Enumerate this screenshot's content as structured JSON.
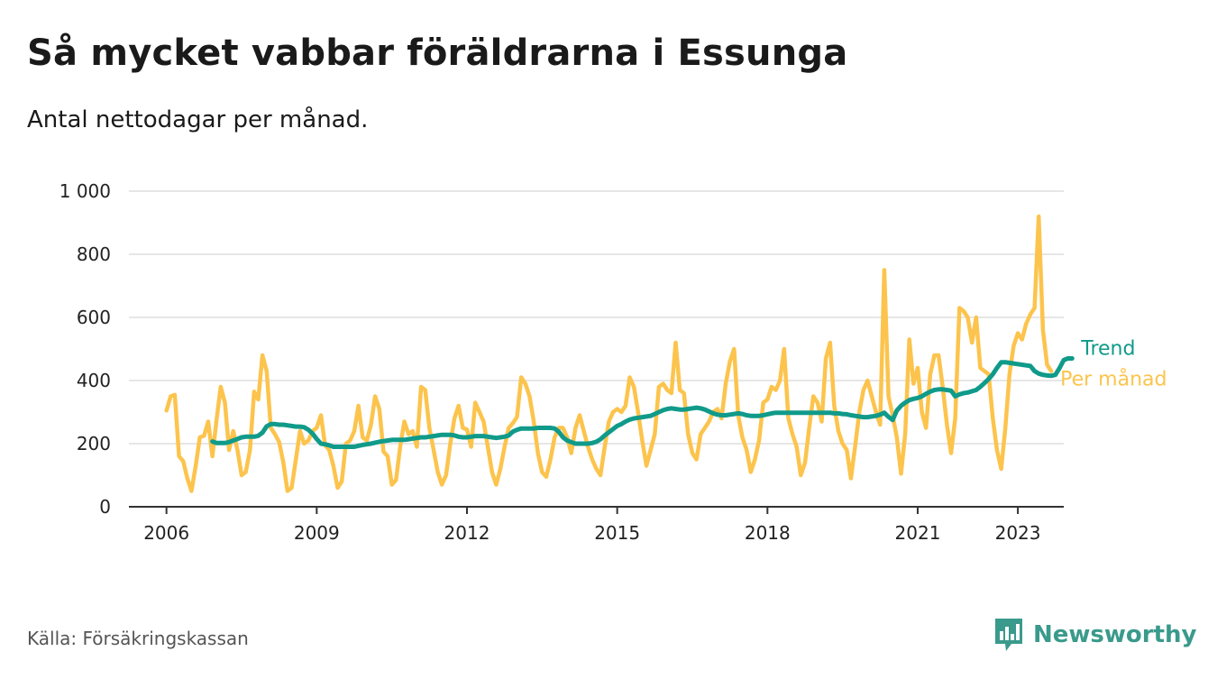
{
  "title": "Så mycket vabbar föräldrarna i Essunga",
  "subtitle": "Antal nettodagar per månad.",
  "source": "Källa: Försäkringskassan",
  "brand": "Newsworthy",
  "colors": {
    "monthly": "#fcc44d",
    "trend": "#109a8a",
    "grid": "#dddddd",
    "axis": "#333333",
    "brand": "#3a9a8c"
  },
  "chart_data": {
    "type": "line",
    "title": "Så mycket vabbar föräldrarna i Essunga",
    "subtitle": "Antal nettodagar per månad.",
    "xlabel": "",
    "ylabel": "",
    "x_ticks": [
      "2006",
      "2009",
      "2012",
      "2015",
      "2018",
      "2021",
      "2023"
    ],
    "y_ticks": [
      "0",
      "200",
      "400",
      "600",
      "800",
      "1 000"
    ],
    "xlim": [
      "2005-04",
      "2023-12"
    ],
    "ylim": [
      0,
      1000
    ],
    "grid": true,
    "legend": "inline-right",
    "series": [
      {
        "name": "Per månad",
        "color": "#fcc44d",
        "x_start": "2006-01",
        "frequency": "monthly",
        "values": [
          305,
          350,
          355,
          160,
          145,
          90,
          50,
          130,
          220,
          225,
          270,
          160,
          275,
          380,
          330,
          180,
          240,
          180,
          100,
          110,
          180,
          365,
          340,
          480,
          430,
          250,
          230,
          205,
          140,
          50,
          60,
          150,
          240,
          200,
          210,
          240,
          250,
          290,
          195,
          180,
          130,
          60,
          80,
          200,
          210,
          240,
          320,
          220,
          210,
          260,
          350,
          310,
          175,
          160,
          70,
          85,
          190,
          270,
          230,
          240,
          190,
          380,
          370,
          250,
          180,
          110,
          70,
          100,
          200,
          280,
          320,
          250,
          245,
          190,
          330,
          300,
          270,
          190,
          110,
          70,
          120,
          190,
          250,
          265,
          285,
          410,
          390,
          350,
          270,
          170,
          110,
          95,
          150,
          220,
          250,
          250,
          220,
          170,
          250,
          290,
          240,
          190,
          150,
          120,
          100,
          190,
          270,
          300,
          310,
          300,
          320,
          410,
          380,
          300,
          210,
          130,
          180,
          230,
          380,
          390,
          370,
          360,
          520,
          370,
          360,
          230,
          170,
          150,
          230,
          250,
          270,
          300,
          310,
          280,
          390,
          460,
          500,
          290,
          220,
          180,
          110,
          150,
          210,
          330,
          340,
          380,
          370,
          400,
          500,
          280,
          230,
          190,
          100,
          140,
          250,
          350,
          330,
          270,
          470,
          520,
          320,
          240,
          200,
          180,
          90,
          190,
          300,
          370,
          400,
          350,
          300,
          260,
          750,
          350,
          290,
          220,
          105,
          230,
          530,
          390,
          440,
          300,
          250,
          420,
          480,
          480,
          380,
          260,
          170,
          280,
          630,
          620,
          600,
          520,
          600,
          440,
          430,
          420,
          280,
          180,
          120,
          250,
          420,
          510,
          550,
          530,
          580,
          610,
          630,
          920,
          560,
          450,
          430
        ]
      },
      {
        "name": "Trend",
        "color": "#109a8a",
        "x_start": "2006-12",
        "frequency": "monthly",
        "values": [
          207,
          202,
          202,
          202,
          205,
          210,
          215,
          220,
          222,
          222,
          222,
          225,
          235,
          255,
          262,
          262,
          260,
          260,
          258,
          256,
          254,
          254,
          252,
          244,
          232,
          215,
          200,
          198,
          195,
          190,
          190,
          190,
          190,
          190,
          190,
          193,
          196,
          198,
          200,
          203,
          206,
          208,
          210,
          212,
          212,
          212,
          212,
          214,
          216,
          218,
          220,
          220,
          222,
          224,
          226,
          228,
          228,
          228,
          226,
          222,
          220,
          220,
          222,
          224,
          224,
          224,
          222,
          220,
          218,
          220,
          222,
          226,
          238,
          244,
          248,
          248,
          248,
          248,
          250,
          250,
          250,
          250,
          248,
          238,
          220,
          210,
          205,
          200,
          200,
          200,
          200,
          202,
          206,
          214,
          226,
          236,
          246,
          256,
          262,
          270,
          276,
          280,
          282,
          284,
          286,
          288,
          294,
          300,
          306,
          310,
          312,
          310,
          308,
          308,
          310,
          312,
          314,
          312,
          308,
          302,
          296,
          292,
          290,
          290,
          292,
          294,
          296,
          294,
          290,
          288,
          288,
          288,
          290,
          293,
          296,
          298,
          298,
          298,
          298,
          298,
          298,
          298,
          298,
          298,
          298,
          298,
          298,
          298,
          298,
          296,
          296,
          294,
          293,
          290,
          288,
          286,
          284,
          284,
          286,
          288,
          292,
          298,
          285,
          275,
          305,
          320,
          330,
          338,
          342,
          345,
          350,
          358,
          365,
          370,
          372,
          372,
          370,
          368,
          350,
          356,
          360,
          362,
          366,
          370,
          380,
          392,
          405,
          420,
          440,
          458,
          458,
          456,
          454,
          452,
          450,
          448,
          446,
          430,
          422,
          418,
          416,
          415,
          418,
          440,
          465,
          470,
          470
        ]
      }
    ]
  }
}
